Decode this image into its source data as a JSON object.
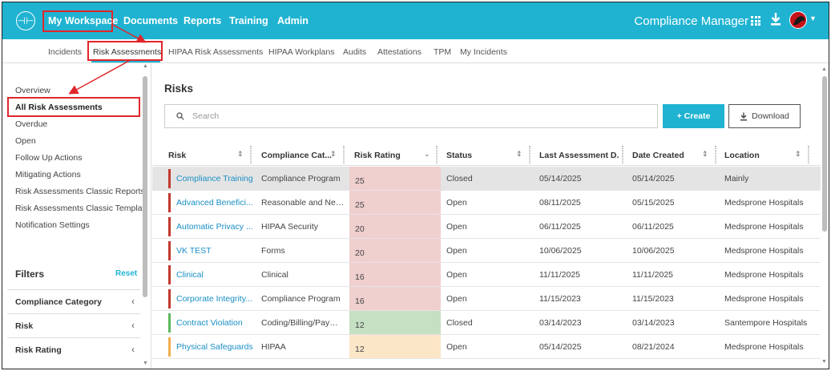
{
  "topbar": {
    "logo_glyph": "⊣⊢",
    "nav": [
      "My Workspace",
      "Documents",
      "Reports",
      "Training",
      "Admin"
    ],
    "app_name": "Compliance Manager",
    "icons": [
      "apps-grid-icon",
      "download-icon",
      "avatar",
      "chevron-down-icon"
    ]
  },
  "subnav": {
    "items": [
      "Incidents",
      "Risk Assessments",
      "HIPAA Risk Assessments",
      "HIPAA Workplans",
      "Audits",
      "Attestations",
      "TPM",
      "My Incidents"
    ],
    "active": "Risk Assessments"
  },
  "sidebar": {
    "links": [
      "Overview",
      "All Risk Assessments",
      "Overdue",
      "Open",
      "Follow Up Actions",
      "Mitigating Actions",
      "Risk Assessments Classic Reports",
      "Risk Assessments Classic Templates",
      "Notification Settings"
    ],
    "active": "All Risk Assessments",
    "filters_title": "Filters",
    "filters_reset": "Reset",
    "filters": [
      "Compliance Category",
      "Risk",
      "Risk Rating"
    ]
  },
  "main": {
    "title": "Risks",
    "search_placeholder": "Search",
    "create_label": "+ Create",
    "download_label": "Download"
  },
  "table": {
    "columns": [
      "Risk",
      "Compliance Cat...",
      "Risk Rating",
      "Status",
      "Last Assessment D...",
      "Date Created",
      "Location"
    ],
    "rows": [
      {
        "risk": "Compliance Training",
        "category": "Compliance Program",
        "rating": "25",
        "status": "Closed",
        "last": "05/14/2025",
        "created": "05/14/2025",
        "location": "Mainly",
        "bar": "#c0392b",
        "ratingColor": "#f0cfcf",
        "selected": true
      },
      {
        "risk": "Advanced Benefici...",
        "category": "Reasonable and Nec...",
        "rating": "25",
        "status": "Open",
        "last": "08/11/2025",
        "created": "05/15/2025",
        "location": "Medsprone Hospitals",
        "bar": "#c0392b",
        "ratingColor": "#f0cfcf"
      },
      {
        "risk": "Automatic Privacy ...",
        "category": "HIPAA Security",
        "rating": "20",
        "status": "Open",
        "last": "06/11/2025",
        "created": "06/11/2025",
        "location": "Medsprone Hospitals",
        "bar": "#c0392b",
        "ratingColor": "#f0cfcf"
      },
      {
        "risk": "VK TEST",
        "category": "Forms",
        "rating": "20",
        "status": "Open",
        "last": "10/06/2025",
        "created": "10/06/2025",
        "location": "Medsprone Hospitals",
        "bar": "#c0392b",
        "ratingColor": "#f0cfcf"
      },
      {
        "risk": "Clinical",
        "category": "Clinical",
        "rating": "16",
        "status": "Open",
        "last": "11/11/2025",
        "created": "11/11/2025",
        "location": "Medsprone Hospitals",
        "bar": "#c0392b",
        "ratingColor": "#f0cfcf"
      },
      {
        "risk": "Corporate Integrity...",
        "category": "Compliance Program",
        "rating": "16",
        "status": "Open",
        "last": "11/15/2023",
        "created": "11/15/2023",
        "location": "Medsprone Hospitals",
        "bar": "#c0392b",
        "ratingColor": "#f0cfcf"
      },
      {
        "risk": "Contract Violation",
        "category": "Coding/Billing/Payme...",
        "rating": "12",
        "status": "Closed",
        "last": "03/14/2023",
        "created": "03/14/2023",
        "location": "Santempore Hospitals",
        "bar": "#5cb85c",
        "ratingColor": "#c6e0c4"
      },
      {
        "risk": "Physical Safeguards",
        "category": "HIPAA",
        "rating": "12",
        "status": "Open",
        "last": "05/14/2025",
        "created": "08/21/2024",
        "location": "Medsprone Hospitals",
        "bar": "#f0ad4e",
        "ratingColor": "#fbe6c8"
      }
    ]
  },
  "colors": {
    "brand": "#1fb3d1",
    "annotation": "#e0262b",
    "link": "#1a8fc6"
  }
}
